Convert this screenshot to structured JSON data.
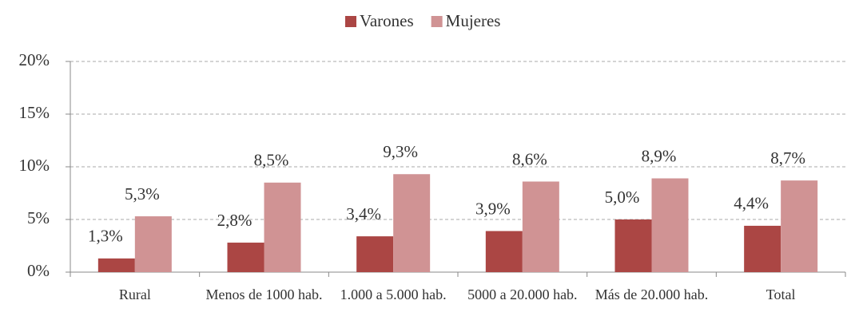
{
  "chart_data": {
    "type": "bar",
    "categories": [
      "Rural",
      "Menos de 1000 hab.",
      "1.000 a 5.000 hab.",
      "5000 a 20.000 hab.",
      "Más de 20.000 hab.",
      "Total"
    ],
    "series": [
      {
        "name": "Varones",
        "color": "#ab4644",
        "values": [
          1.3,
          2.8,
          3.4,
          3.9,
          5.0,
          4.4
        ],
        "value_labels": [
          "1,3%",
          "2,8%",
          "3,4%",
          "3,9%",
          "5,0%",
          "4,4%"
        ]
      },
      {
        "name": "Mujeres",
        "color": "#d09394",
        "values": [
          5.3,
          8.5,
          9.3,
          8.6,
          8.9,
          8.7
        ],
        "value_labels": [
          "5,3%",
          "8,5%",
          "9,3%",
          "8,6%",
          "8,9%",
          "8,7%"
        ]
      }
    ],
    "ylim": [
      0,
      20
    ],
    "yticks": [
      {
        "value": 0,
        "label": "0%"
      },
      {
        "value": 5,
        "label": "5%"
      },
      {
        "value": 10,
        "label": "10%"
      },
      {
        "value": 15,
        "label": "15%"
      },
      {
        "value": 20,
        "label": "20%"
      }
    ],
    "grid": true,
    "legend": "top"
  }
}
